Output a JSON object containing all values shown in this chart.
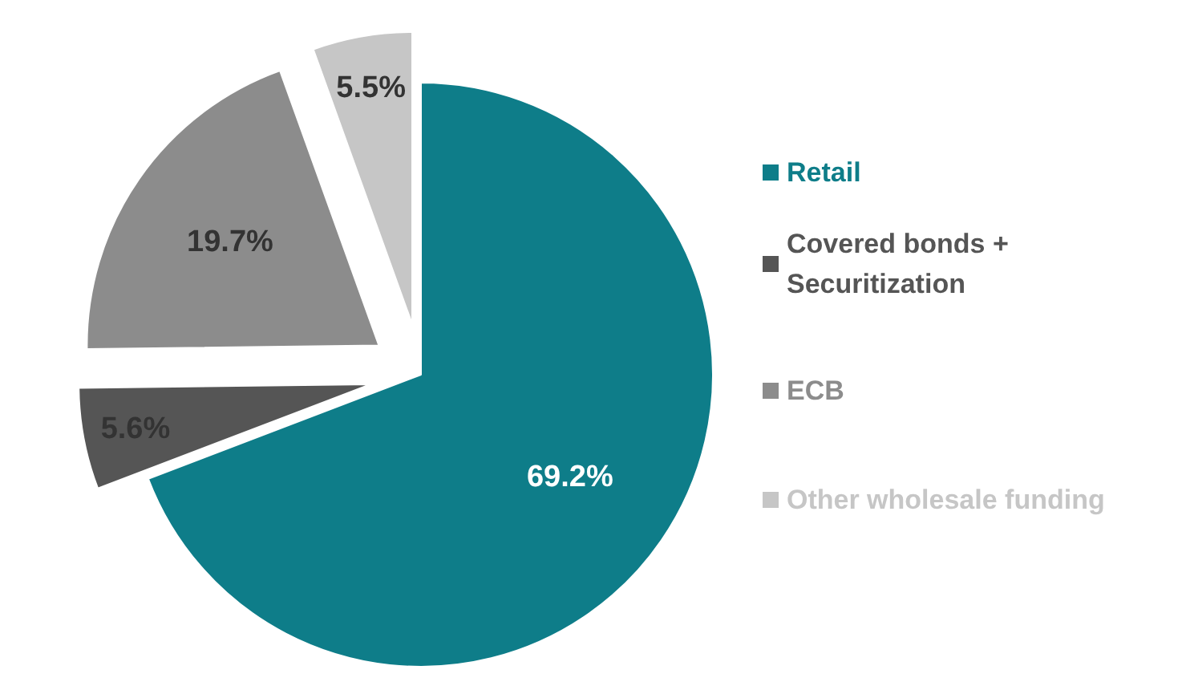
{
  "chart_data": {
    "type": "pie",
    "categories": [
      "Retail",
      "Covered bonds + Securitization",
      "ECB",
      "Other wholesale funding"
    ],
    "values": [
      69.2,
      5.6,
      19.7,
      5.5
    ],
    "colors": [
      "#0e7d89",
      "#555555",
      "#8c8c8c",
      "#c6c6c6"
    ],
    "value_labels": [
      "69.2%",
      "5.6%",
      "19.7%",
      "5.5%"
    ],
    "legend": "right"
  }
}
